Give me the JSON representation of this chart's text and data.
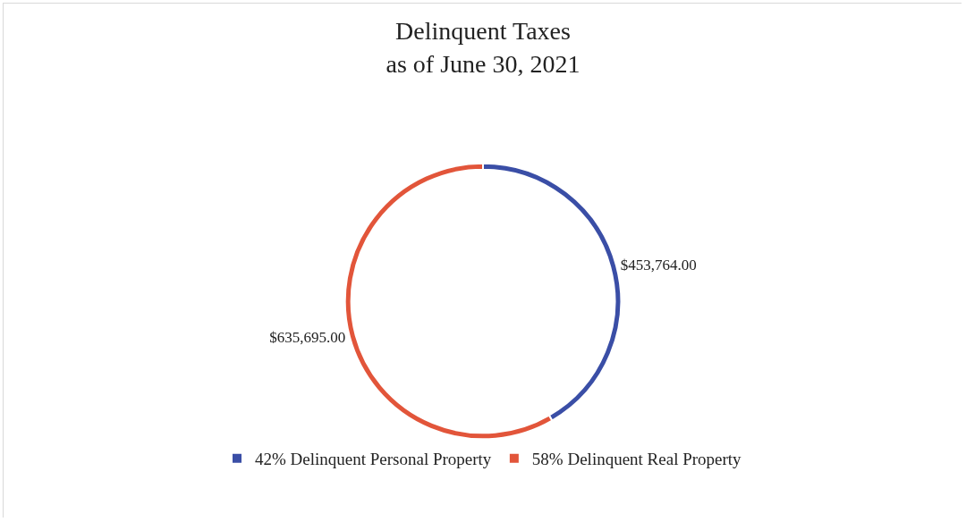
{
  "chart_data": {
    "type": "donut",
    "title": "Delinquent Taxes\nas of June 30, 2021",
    "categories": [
      "42% Delinquent Personal Property",
      "58% Delinquent Real Property"
    ],
    "values": [
      453764,
      635695
    ],
    "colors": [
      "#3a4ea6",
      "#e2553a"
    ],
    "value_labels": [
      "$453,764.00",
      "$635,695.00"
    ],
    "legend": "bottom"
  }
}
